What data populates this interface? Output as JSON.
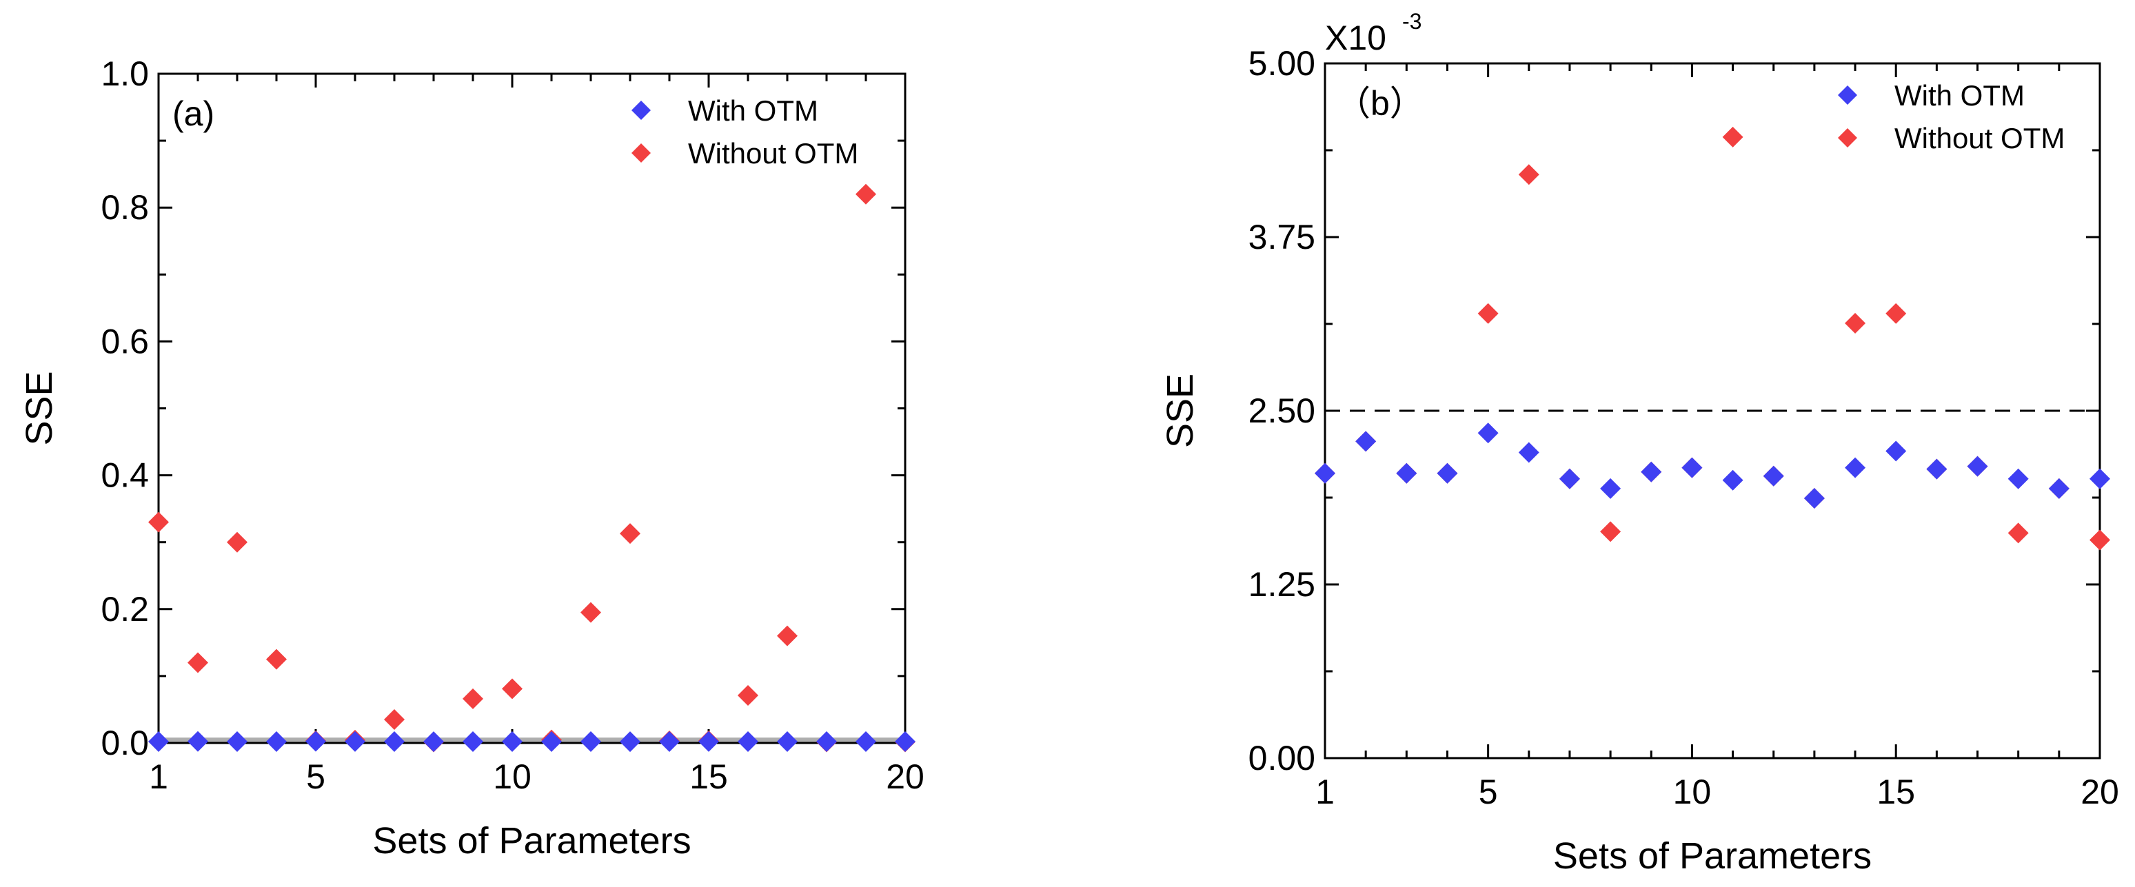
{
  "colors": {
    "with": "#3f3ff2",
    "without": "#f23f3f",
    "axis": "#000000",
    "band": "#a0a0a0"
  },
  "chart_data": [
    {
      "type": "scatter",
      "panel_label": "(a)",
      "title": "",
      "xlabel": "Sets of Parameters",
      "ylabel": "SSE",
      "xlim": [
        1,
        20
      ],
      "ylim": [
        0,
        1.0
      ],
      "xticks": [
        1,
        5,
        10,
        15,
        20
      ],
      "yticks": [
        0.0,
        0.2,
        0.4,
        0.6,
        0.8,
        1.0
      ],
      "ytick_labels": [
        "0.0",
        "0.2",
        "0.4",
        "0.6",
        "0.8",
        "1.0"
      ],
      "grid": false,
      "legend_position": "top-right",
      "band": [
        0,
        0.008
      ],
      "x": [
        1,
        2,
        3,
        4,
        5,
        6,
        7,
        8,
        9,
        10,
        11,
        12,
        13,
        14,
        15,
        16,
        17,
        18,
        19,
        20
      ],
      "series": [
        {
          "name": "With    OTM",
          "marker": "diamond",
          "values": [
            0.0021,
            0.0023,
            0.0021,
            0.0021,
            0.0024,
            0.0022,
            0.002,
            0.0019,
            0.0021,
            0.0021,
            0.002,
            0.002,
            0.0019,
            0.0021,
            0.0022,
            0.0021,
            0.0021,
            0.002,
            0.002,
            0.002
          ]
        },
        {
          "name": "Without OTM",
          "marker": "diamond",
          "values": [
            0.33,
            0.12,
            0.3,
            0.125,
            0.0032,
            0.0042,
            0.035,
            0.0016,
            0.066,
            0.081,
            0.0045,
            0.195,
            0.313,
            0.0031,
            0.0032,
            0.071,
            0.16,
            0.0016,
            0.82,
            0.0015
          ]
        }
      ]
    },
    {
      "type": "scatter",
      "panel_label": "（b）",
      "title": "",
      "xlabel": "Sets of Parameters",
      "ylabel": "SSE",
      "multiplier": "X10",
      "multiplier_exp": "-3",
      "xlim": [
        1,
        20
      ],
      "ylim": [
        0,
        5.0
      ],
      "xticks": [
        1,
        5,
        10,
        15,
        20
      ],
      "yticks": [
        0.0,
        1.25,
        2.5,
        3.75,
        5.0
      ],
      "ytick_labels": [
        "0.00",
        "1.25",
        "2.50",
        "3.75",
        "5.00"
      ],
      "grid": false,
      "legend_position": "top-right",
      "reference_line": 2.5,
      "x": [
        1,
        2,
        3,
        4,
        5,
        6,
        7,
        8,
        9,
        10,
        11,
        12,
        13,
        14,
        15,
        16,
        17,
        18,
        19,
        20
      ],
      "series": [
        {
          "name": "With    OTM",
          "marker": "diamond",
          "values": [
            2.05,
            2.28,
            2.05,
            2.05,
            2.34,
            2.2,
            2.01,
            1.94,
            2.06,
            2.09,
            2.0,
            2.03,
            1.87,
            2.09,
            2.21,
            2.08,
            2.1,
            2.01,
            1.94,
            2.01
          ]
        },
        {
          "name": "Without OTM",
          "marker": "diamond",
          "values": [
            2.05,
            2.28,
            2.05,
            2.05,
            3.2,
            4.2,
            2.01,
            1.63,
            2.06,
            2.09,
            4.47,
            2.03,
            1.87,
            3.13,
            3.2,
            2.08,
            2.1,
            1.62,
            1.94,
            1.57
          ]
        }
      ]
    }
  ]
}
